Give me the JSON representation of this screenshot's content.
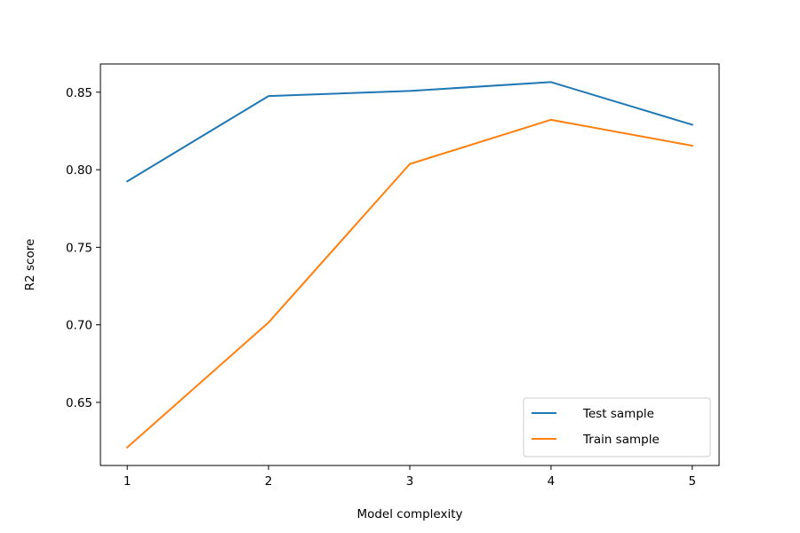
{
  "chart_data": {
    "type": "line",
    "x": [
      1,
      2,
      3,
      4,
      5
    ],
    "series": [
      {
        "name": "Test sample",
        "values": [
          0.7925,
          0.8475,
          0.8508,
          0.8565,
          0.829
        ],
        "color": "#1f77b4"
      },
      {
        "name": "Train sample",
        "values": [
          0.621,
          0.7015,
          0.8037,
          0.8322,
          0.8155
        ],
        "color": "#ff7f0e"
      }
    ],
    "title": "",
    "xlabel": "Model complexity",
    "ylabel": "R2 score",
    "xlim": [
      0.81,
      5.19
    ],
    "ylim": [
      0.6093,
      0.8682
    ],
    "xticks": [
      1,
      2,
      3,
      4,
      5
    ],
    "xtick_labels": [
      "1",
      "2",
      "3",
      "4",
      "5"
    ],
    "yticks": [
      0.65,
      0.7,
      0.75,
      0.8,
      0.85
    ],
    "ytick_labels": [
      "0.65",
      "0.70",
      "0.75",
      "0.80",
      "0.85"
    ],
    "grid": false,
    "legend_position": "bottom-right"
  }
}
